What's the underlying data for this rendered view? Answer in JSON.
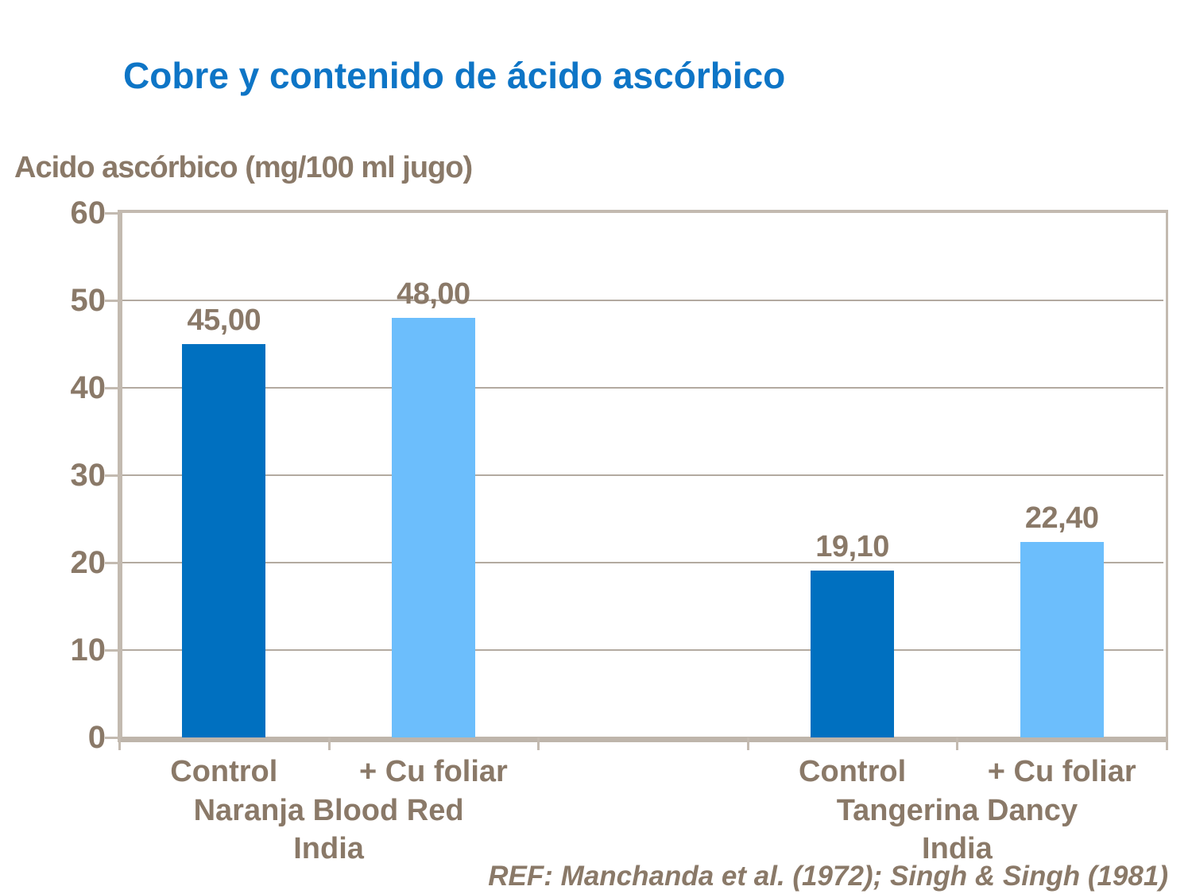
{
  "slide": {
    "background": "#FFFFFF"
  },
  "theme": {
    "title_color": "#0E75C6",
    "text_brown": "#8A7968",
    "axis_color": "#C3BAB0",
    "grid_color": "#B3AAA0",
    "dark_blue": "#0070C0",
    "light_blue": "#6CBEFC"
  },
  "chart_data": {
    "type": "bar",
    "title": "Cobre y contenido de ácido ascórbico",
    "ylabel": "Acido ascórbico (mg/100 ml jugo)",
    "xlabel": "",
    "ylim": [
      0,
      60
    ],
    "yticks": [
      0,
      10,
      20,
      30,
      40,
      50,
      60
    ],
    "grid": true,
    "legend": false,
    "slots": 5,
    "bars": [
      {
        "slot": 0,
        "group": 0,
        "label": "Control",
        "value": 45.0,
        "display": "45,00",
        "color": "#0070C0"
      },
      {
        "slot": 1,
        "group": 0,
        "label": "+ Cu foliar",
        "value": 48.0,
        "display": "48,00",
        "color": "#6CBEFC"
      },
      {
        "slot": 3,
        "group": 1,
        "label": "Control",
        "value": 19.1,
        "display": "19,10",
        "color": "#0070C0"
      },
      {
        "slot": 4,
        "group": 1,
        "label": "+ Cu foliar",
        "value": 22.4,
        "display": "22,40",
        "color": "#6CBEFC"
      }
    ],
    "groups": [
      {
        "lines": [
          "Naranja Blood Red",
          "India"
        ],
        "slot_start": 0,
        "slot_end": 1
      },
      {
        "lines": [
          "Tangerina Dancy",
          "India"
        ],
        "slot_start": 3,
        "slot_end": 4
      }
    ],
    "reference": "REF: Manchanda et al. (1972); Singh & Singh (1981)"
  }
}
